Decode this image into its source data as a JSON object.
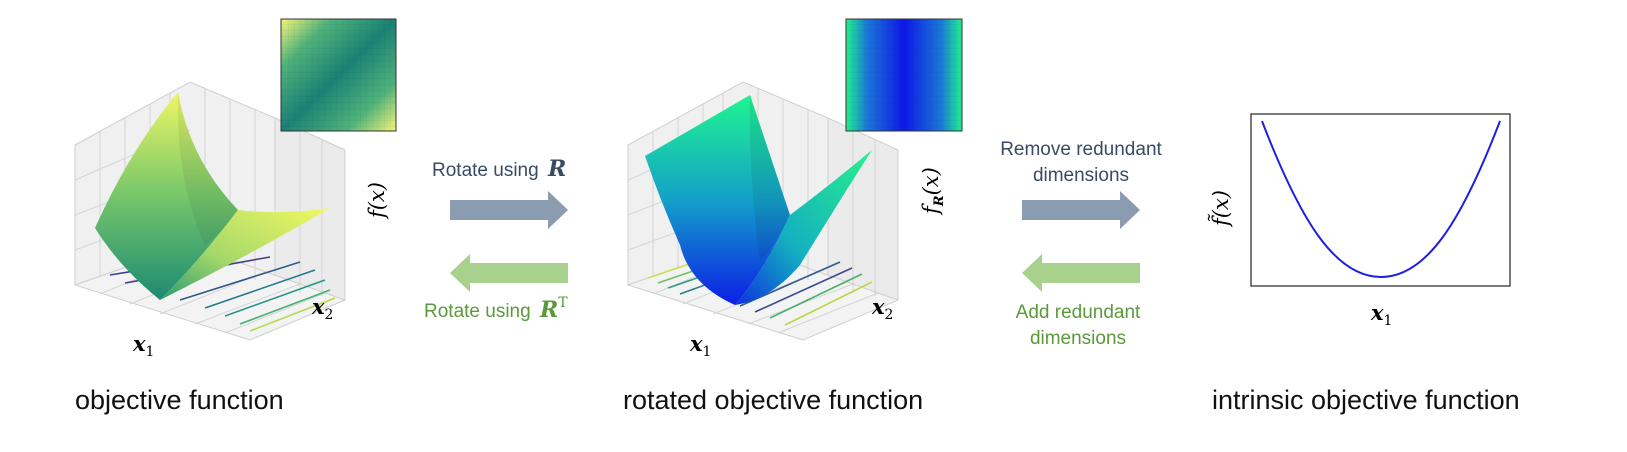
{
  "panels": {
    "left": {
      "caption": "objective function",
      "x_label": "x",
      "x_label_sub": "1",
      "y_label": "x",
      "y_label_sub": "2",
      "z_label": "f(x)"
    },
    "middle": {
      "caption": "rotated objective function",
      "x_label": "x",
      "x_label_sub": "1",
      "y_label": "x",
      "y_label_sub": "2",
      "z_label_f": "f",
      "z_label_sub": "R",
      "z_label_arg": "(x)"
    },
    "right": {
      "caption": "intrinsic objective function",
      "x_label": "x",
      "x_label_sub": "1",
      "y_label": "f̃(x)"
    }
  },
  "arrows": {
    "rotate_forward": {
      "text": "Rotate using",
      "symbol": "R"
    },
    "rotate_back": {
      "text": "Rotate using",
      "symbol": "R",
      "superscript": "T"
    },
    "remove": {
      "line1": "Remove redundant",
      "line2": "dimensions"
    },
    "add": {
      "line1": "Add redundant",
      "line2": "dimensions"
    }
  },
  "colors": {
    "forward_arrow": "#8b9bb0",
    "back_arrow": "#a9d18e",
    "forward_text": "#3a4a66",
    "back_text": "#5a9a3a",
    "curve": "#1f1fe0",
    "surface_left_top": "#e6f56a",
    "surface_left_bottom": "#1e9070",
    "surface_mid_top": "#1ff58a",
    "surface_mid_bottom": "#1020e8"
  }
}
